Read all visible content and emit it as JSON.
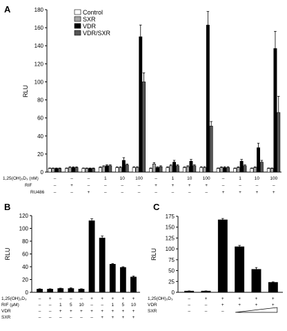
{
  "chart_data": [
    {
      "panel": "A",
      "type": "bar",
      "ylabel": "RLU",
      "ylim": [
        0,
        180
      ],
      "yticks": [
        0,
        20,
        40,
        60,
        80,
        100,
        120,
        140,
        160,
        180
      ],
      "legend": {
        "placement": "top-left",
        "entries": [
          "Control",
          "SXR",
          "VDR",
          "VDR/SXR"
        ]
      },
      "colors": {
        "Control": "#ffffff",
        "SXR": "#a6a6a6",
        "VDR": "#000000",
        "VDR/SXR": "#555555"
      },
      "condition_rows": [
        {
          "label": "1,25(OH)₂D₃ (nM)",
          "values": [
            "–",
            "–",
            "–",
            "1",
            "10",
            "100",
            "–",
            "1",
            "10",
            "100",
            "–",
            "1",
            "10",
            "100"
          ]
        },
        {
          "label": "RIF",
          "values": [
            "–",
            "+",
            "–",
            "–",
            "–",
            "–",
            "+",
            "+",
            "+",
            "+",
            "–",
            "–",
            "–",
            "–"
          ]
        },
        {
          "label": "RU486",
          "values": [
            "–",
            "–",
            "+",
            "–",
            "–",
            "–",
            "–",
            "–",
            "–",
            "–",
            "+",
            "+",
            "+",
            "+"
          ]
        }
      ],
      "series": [
        {
          "name": "Control",
          "values": [
            4,
            4,
            4,
            5,
            5,
            5,
            4,
            5,
            5,
            5,
            4,
            4,
            4,
            4
          ],
          "errors": [
            0.5,
            0.5,
            0.5,
            0.8,
            0.8,
            1,
            0.5,
            0.8,
            0.8,
            1,
            0.5,
            0.5,
            0.5,
            0.5
          ]
        },
        {
          "name": "SXR",
          "values": [
            4,
            5,
            4,
            6,
            5,
            5,
            9,
            7,
            6,
            5,
            5,
            5,
            5,
            4
          ],
          "errors": [
            0.5,
            1,
            0.5,
            1,
            1,
            1,
            1.5,
            1,
            1,
            1,
            0.8,
            0.8,
            0.8,
            0.5
          ]
        },
        {
          "name": "VDR",
          "values": [
            4,
            5,
            4,
            7,
            13,
            150,
            5,
            11,
            12,
            163,
            5,
            12,
            27,
            137
          ],
          "errors": [
            0.5,
            0.8,
            0.5,
            1,
            3,
            13,
            1,
            2,
            2,
            15,
            1,
            2,
            5,
            19
          ]
        },
        {
          "name": "VDR/SXR",
          "values": [
            4,
            5,
            4,
            7,
            8,
            100,
            6,
            7,
            7,
            51,
            5,
            7,
            11,
            66
          ],
          "errors": [
            0.5,
            0.8,
            0.5,
            1,
            1,
            10,
            1,
            1,
            1,
            5,
            1,
            1,
            2,
            18
          ]
        }
      ]
    },
    {
      "panel": "B",
      "type": "bar",
      "ylabel": "RLU",
      "ylim": [
        0,
        120
      ],
      "yticks": [
        0,
        20,
        40,
        60,
        80,
        100,
        120
      ],
      "condition_rows": [
        {
          "label": "1,25(OH)₂D₃",
          "values": [
            "–",
            "+",
            "–",
            "–",
            "–",
            "+",
            "+",
            "+",
            "+",
            "+"
          ]
        },
        {
          "label": "RIF (μM)",
          "values": [
            "–",
            "–",
            "1",
            "5",
            "10",
            "–",
            "–",
            "1",
            "5",
            "10"
          ]
        },
        {
          "label": "VDR",
          "values": [
            "–",
            "–",
            "+",
            "+",
            "+",
            "+",
            "+",
            "+",
            "+",
            "+"
          ]
        },
        {
          "label": "SXR",
          "values": [
            "–",
            "–",
            "–",
            "–",
            "–",
            "–",
            "+",
            "+",
            "+",
            "+"
          ]
        }
      ],
      "values": [
        5,
        5,
        6,
        6,
        5,
        112,
        85,
        44,
        39,
        24
      ],
      "errors": [
        0.5,
        0.5,
        0.5,
        1,
        0.5,
        3,
        3,
        1,
        1,
        1.5
      ]
    },
    {
      "panel": "C",
      "type": "bar",
      "ylabel": "RLU",
      "ylim": [
        0,
        175
      ],
      "yticks": [
        0,
        25,
        50,
        75,
        100,
        125,
        150,
        175
      ],
      "condition_rows": [
        {
          "label": "1,25(OH)₂D₃",
          "values": [
            "–",
            "+",
            "+",
            "+",
            "+",
            "+"
          ]
        },
        {
          "label": "VDR",
          "values": [
            "–",
            "–",
            "+",
            "+",
            "+",
            "+"
          ]
        },
        {
          "label": "SXR",
          "values": [
            "–",
            "–",
            "–",
            "",
            "",
            ""
          ]
        }
      ],
      "values": [
        3,
        3,
        167,
        105,
        53,
        23
      ],
      "errors": [
        0.3,
        0.3,
        3,
        3,
        4,
        1
      ]
    }
  ]
}
